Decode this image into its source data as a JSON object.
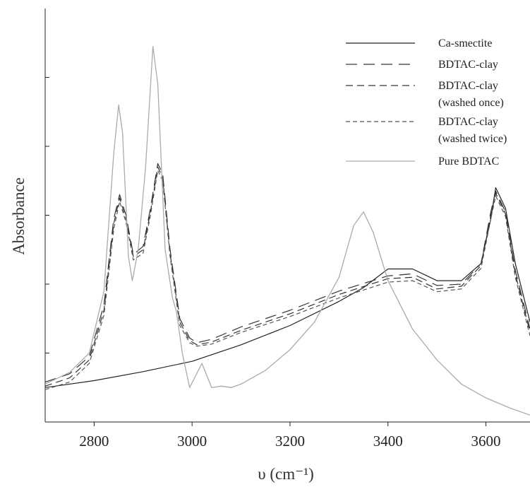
{
  "chart_data": {
    "type": "line",
    "title": "",
    "xlabel": "υ (cm⁻¹)",
    "ylabel": "Absorbance",
    "xlim": [
      2700,
      3690
    ],
    "ylim": [
      0,
      6
    ],
    "x_ticks": [
      2800,
      3000,
      3200,
      3400,
      3600
    ],
    "x_tick_labels": [
      "2800",
      "3000",
      "3200",
      "3400",
      "3600"
    ],
    "y_ticks": [
      1,
      2,
      3,
      4,
      5
    ],
    "y_tick_labels": [
      "",
      "",
      "",
      "",
      ""
    ],
    "grid": false,
    "legend_position": "top-right",
    "series": [
      {
        "name": "Ca-smectite",
        "color": "#222222",
        "dash": "",
        "width": 1.2,
        "points": [
          [
            2700,
            0.5
          ],
          [
            2800,
            0.6
          ],
          [
            2900,
            0.73
          ],
          [
            3000,
            0.88
          ],
          [
            3100,
            1.12
          ],
          [
            3200,
            1.4
          ],
          [
            3300,
            1.75
          ],
          [
            3350,
            1.95
          ],
          [
            3400,
            2.22
          ],
          [
            3450,
            2.22
          ],
          [
            3500,
            2.05
          ],
          [
            3550,
            2.05
          ],
          [
            3590,
            2.3
          ],
          [
            3610,
            2.95
          ],
          [
            3620,
            3.4
          ],
          [
            3640,
            3.1
          ],
          [
            3660,
            2.3
          ],
          [
            3690,
            1.45
          ]
        ]
      },
      {
        "name": "BDTAC-clay",
        "color": "#333333",
        "dash": "16,9",
        "width": 1.2,
        "points": [
          [
            2700,
            0.58
          ],
          [
            2750,
            0.7
          ],
          [
            2790,
            0.95
          ],
          [
            2820,
            1.7
          ],
          [
            2840,
            2.95
          ],
          [
            2852,
            3.3
          ],
          [
            2865,
            3.0
          ],
          [
            2880,
            2.43
          ],
          [
            2900,
            2.55
          ],
          [
            2915,
            3.1
          ],
          [
            2930,
            3.75
          ],
          [
            2940,
            3.6
          ],
          [
            2955,
            2.5
          ],
          [
            2975,
            1.5
          ],
          [
            2995,
            1.22
          ],
          [
            3010,
            1.15
          ],
          [
            3040,
            1.2
          ],
          [
            3100,
            1.38
          ],
          [
            3200,
            1.62
          ],
          [
            3300,
            1.9
          ],
          [
            3400,
            2.12
          ],
          [
            3450,
            2.15
          ],
          [
            3500,
            1.98
          ],
          [
            3550,
            2.0
          ],
          [
            3590,
            2.3
          ],
          [
            3610,
            3.05
          ],
          [
            3620,
            3.35
          ],
          [
            3640,
            3.05
          ],
          [
            3660,
            2.2
          ],
          [
            3690,
            1.35
          ]
        ]
      },
      {
        "name": "BDTAC-clay (washed once)",
        "color": "#333333",
        "dash": "10,6",
        "width": 1.2,
        "points": [
          [
            2700,
            0.52
          ],
          [
            2750,
            0.64
          ],
          [
            2790,
            0.9
          ],
          [
            2820,
            1.62
          ],
          [
            2840,
            2.88
          ],
          [
            2852,
            3.25
          ],
          [
            2865,
            2.95
          ],
          [
            2880,
            2.4
          ],
          [
            2900,
            2.5
          ],
          [
            2915,
            3.05
          ],
          [
            2930,
            3.7
          ],
          [
            2940,
            3.55
          ],
          [
            2955,
            2.45
          ],
          [
            2975,
            1.45
          ],
          [
            2995,
            1.18
          ],
          [
            3010,
            1.12
          ],
          [
            3040,
            1.16
          ],
          [
            3100,
            1.33
          ],
          [
            3200,
            1.57
          ],
          [
            3300,
            1.85
          ],
          [
            3400,
            2.08
          ],
          [
            3450,
            2.1
          ],
          [
            3500,
            1.93
          ],
          [
            3550,
            1.97
          ],
          [
            3590,
            2.27
          ],
          [
            3610,
            3.0
          ],
          [
            3620,
            3.32
          ],
          [
            3640,
            3.02
          ],
          [
            3660,
            2.15
          ],
          [
            3690,
            1.3
          ]
        ]
      },
      {
        "name": "BDTAC-clay (washed twice)",
        "color": "#555555",
        "dash": "6,4",
        "width": 1.2,
        "points": [
          [
            2700,
            0.47
          ],
          [
            2750,
            0.58
          ],
          [
            2790,
            0.85
          ],
          [
            2820,
            1.55
          ],
          [
            2840,
            2.8
          ],
          [
            2852,
            3.2
          ],
          [
            2865,
            2.9
          ],
          [
            2880,
            2.35
          ],
          [
            2900,
            2.45
          ],
          [
            2915,
            3.0
          ],
          [
            2930,
            3.65
          ],
          [
            2940,
            3.5
          ],
          [
            2955,
            2.4
          ],
          [
            2975,
            1.4
          ],
          [
            2995,
            1.15
          ],
          [
            3010,
            1.1
          ],
          [
            3040,
            1.13
          ],
          [
            3100,
            1.3
          ],
          [
            3200,
            1.53
          ],
          [
            3300,
            1.8
          ],
          [
            3400,
            2.03
          ],
          [
            3450,
            2.05
          ],
          [
            3500,
            1.89
          ],
          [
            3550,
            1.93
          ],
          [
            3590,
            2.23
          ],
          [
            3610,
            2.95
          ],
          [
            3620,
            3.28
          ],
          [
            3640,
            2.98
          ],
          [
            3660,
            2.1
          ],
          [
            3690,
            1.25
          ]
        ]
      },
      {
        "name": "Pure BDTAC",
        "color": "#aaaaaa",
        "dash": "",
        "width": 1.3,
        "points": [
          [
            2700,
            0.55
          ],
          [
            2750,
            0.72
          ],
          [
            2790,
            1.0
          ],
          [
            2820,
            1.9
          ],
          [
            2840,
            3.9
          ],
          [
            2850,
            4.6
          ],
          [
            2858,
            4.2
          ],
          [
            2870,
            2.4
          ],
          [
            2878,
            2.05
          ],
          [
            2890,
            2.5
          ],
          [
            2905,
            3.7
          ],
          [
            2920,
            5.45
          ],
          [
            2930,
            4.9
          ],
          [
            2945,
            2.5
          ],
          [
            2960,
            1.8
          ],
          [
            2968,
            1.6
          ],
          [
            2980,
            1.0
          ],
          [
            2995,
            0.5
          ],
          [
            3020,
            0.85
          ],
          [
            3040,
            0.5
          ],
          [
            3060,
            0.52
          ],
          [
            3080,
            0.5
          ],
          [
            3100,
            0.55
          ],
          [
            3150,
            0.75
          ],
          [
            3200,
            1.05
          ],
          [
            3250,
            1.45
          ],
          [
            3300,
            2.1
          ],
          [
            3330,
            2.85
          ],
          [
            3350,
            3.05
          ],
          [
            3370,
            2.75
          ],
          [
            3400,
            2.05
          ],
          [
            3450,
            1.35
          ],
          [
            3500,
            0.9
          ],
          [
            3550,
            0.55
          ],
          [
            3600,
            0.35
          ],
          [
            3650,
            0.2
          ],
          [
            3690,
            0.1
          ]
        ]
      }
    ]
  }
}
